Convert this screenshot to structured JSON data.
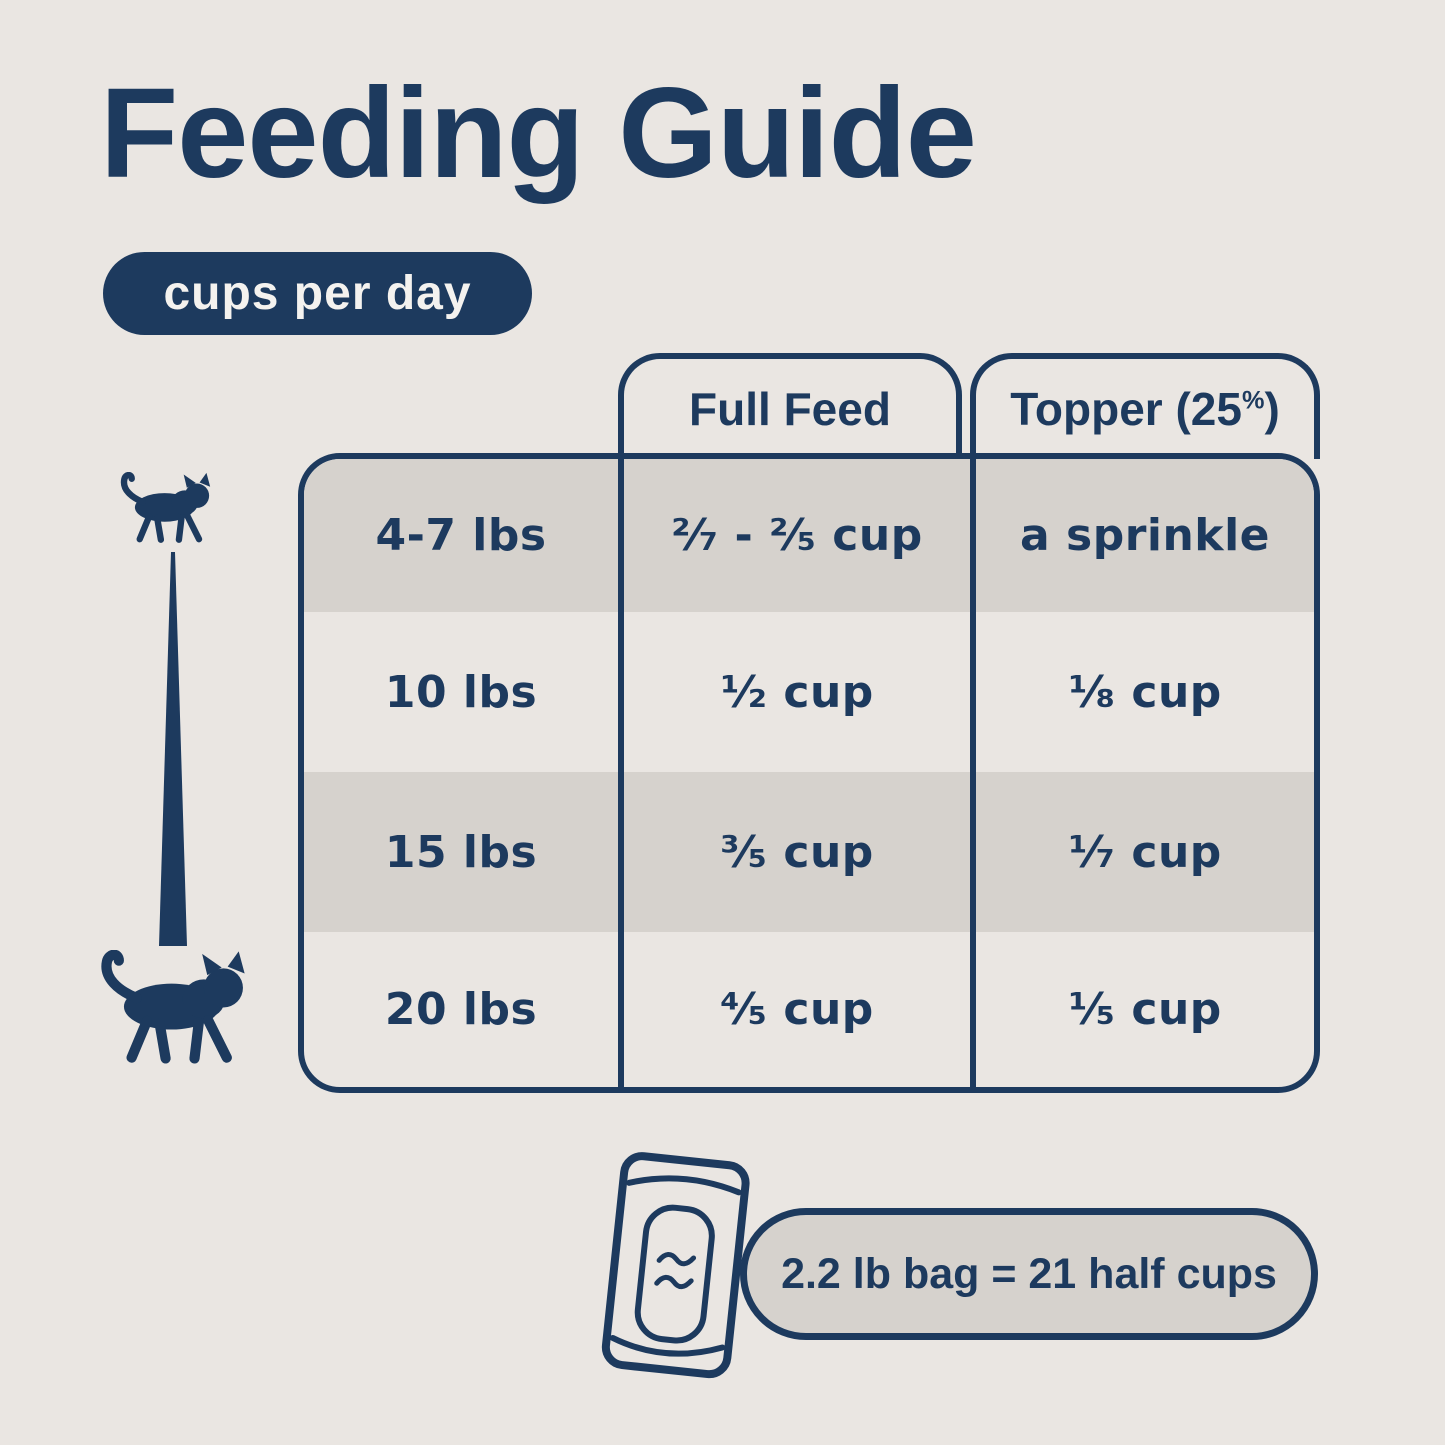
{
  "title": "Feeding Guide",
  "badge_label": "cups per day",
  "colors": {
    "background": "#EAE6E2",
    "navy": "#1D3A5E",
    "row_stripe": "#D6D2CD",
    "badge_text": "#F4F2EF"
  },
  "table": {
    "header": {
      "full_feed": "Full Feed",
      "topper_prefix": "Topper (25",
      "topper_percent": "%",
      "topper_suffix": ")",
      "topper_full_label": "Topper (25%)"
    },
    "rows": [
      {
        "weight": "4-7 lbs",
        "full_feed": "²⁄₇ - ²⁄₅ cup",
        "topper": "a sprinkle"
      },
      {
        "weight": "10 lbs",
        "full_feed": "¹⁄₂ cup",
        "topper": "¹⁄₈ cup"
      },
      {
        "weight": "15 lbs",
        "full_feed": "³⁄₅ cup",
        "topper": "¹⁄₇ cup"
      },
      {
        "weight": "20 lbs",
        "full_feed": "⁴⁄₅ cup",
        "topper": "¹⁄₅ cup"
      }
    ]
  },
  "footer": {
    "note": "2.2 lb bag = 21 half cups"
  },
  "icons": {
    "small_cat": "small-cat-icon (walking cat silhouette, small size)",
    "large_cat": "large-cat-icon (walking cat silhouette, large size)",
    "size_scale": "cat-size-scale-wedge (thin-to-wide tapered bar)",
    "bag": "food-bag-icon (outlined kibble pouch with wavy marks)"
  }
}
